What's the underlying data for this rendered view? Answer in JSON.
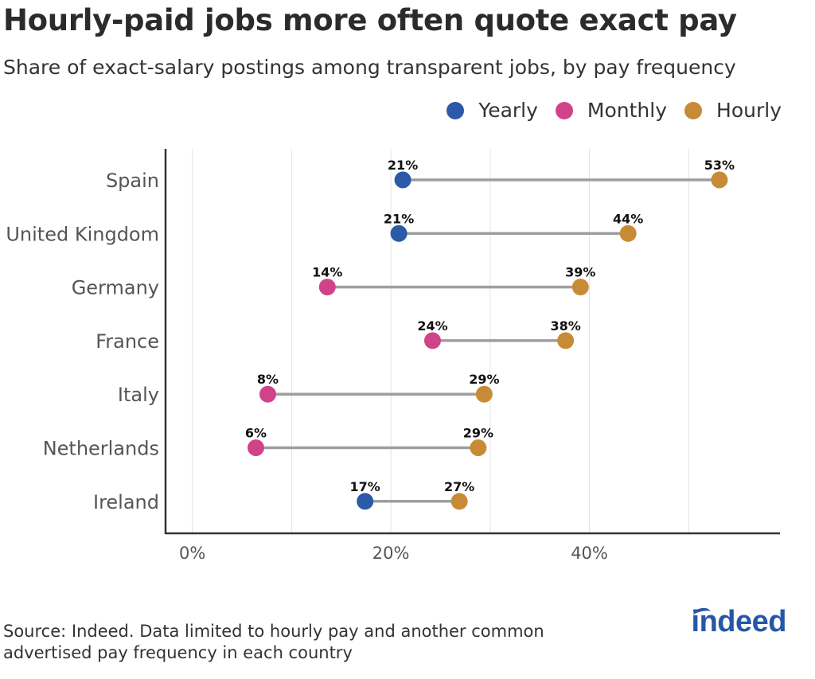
{
  "title": "Hourly-paid jobs more often quote exact pay",
  "subtitle": "Share of exact-salary postings among transparent jobs, by pay frequency",
  "source": "Source: Indeed. Data limited to hourly pay and another common advertised pay frequency in each country",
  "logo": "indeed",
  "colors": {
    "Yearly": "#2a5aa8",
    "Monthly": "#d0438a",
    "Hourly": "#c88b35",
    "connector": "#9e9e9e"
  },
  "legend": [
    "Yearly",
    "Monthly",
    "Hourly"
  ],
  "chart_data": {
    "type": "dumbbell",
    "x_ticks": [
      0,
      20,
      40
    ],
    "x_tick_labels": [
      "0%",
      "20%",
      "40%"
    ],
    "xlim": [
      -2.7,
      59.2
    ],
    "grid": true,
    "legend_position": "top-right",
    "rows": [
      {
        "country": "Spain",
        "points": [
          {
            "series": "Yearly",
            "value": 21.2,
            "label": "21%"
          },
          {
            "series": "Hourly",
            "value": 53.1,
            "label": "53%"
          }
        ]
      },
      {
        "country": "United Kingdom",
        "points": [
          {
            "series": "Yearly",
            "value": 20.8,
            "label": "21%"
          },
          {
            "series": "Hourly",
            "value": 43.9,
            "label": "44%"
          }
        ]
      },
      {
        "country": "Germany",
        "points": [
          {
            "series": "Monthly",
            "value": 13.6,
            "label": "14%"
          },
          {
            "series": "Hourly",
            "value": 39.1,
            "label": "39%"
          }
        ]
      },
      {
        "country": "France",
        "points": [
          {
            "series": "Monthly",
            "value": 24.2,
            "label": "24%"
          },
          {
            "series": "Hourly",
            "value": 37.6,
            "label": "38%"
          }
        ]
      },
      {
        "country": "Italy",
        "points": [
          {
            "series": "Monthly",
            "value": 7.6,
            "label": "8%"
          },
          {
            "series": "Hourly",
            "value": 29.4,
            "label": "29%"
          }
        ]
      },
      {
        "country": "Netherlands",
        "points": [
          {
            "series": "Monthly",
            "value": 6.4,
            "label": "6%"
          },
          {
            "series": "Hourly",
            "value": 28.8,
            "label": "29%"
          }
        ]
      },
      {
        "country": "Ireland",
        "points": [
          {
            "series": "Yearly",
            "value": 17.4,
            "label": "17%"
          },
          {
            "series": "Hourly",
            "value": 26.9,
            "label": "27%"
          }
        ]
      }
    ]
  }
}
